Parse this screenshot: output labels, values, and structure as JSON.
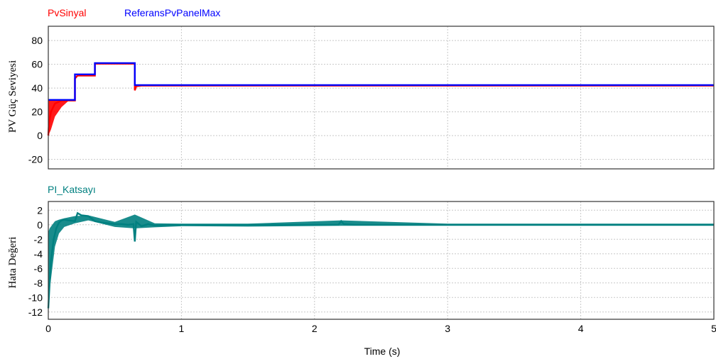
{
  "chart_data": [
    {
      "type": "line",
      "ylabel": "PV Güç Seviyesi",
      "ylim": [
        -28,
        92
      ],
      "yticks": [
        80,
        60,
        40,
        20,
        0,
        -20
      ],
      "xlim": [
        0,
        5
      ],
      "grid": true,
      "legend_placement": "top-left",
      "series": [
        {
          "name": "PvSinyal",
          "color": "#ff0000",
          "x": [
            0,
            0.005,
            0.02,
            0.05,
            0.1,
            0.2,
            0.2,
            0.22,
            0.35,
            0.35,
            0.65,
            0.65,
            0.66,
            0.7,
            5
          ],
          "y": [
            0,
            10,
            20,
            27,
            29.5,
            29.5,
            48,
            50.5,
            50.5,
            60.5,
            60.5,
            38,
            41.5,
            42,
            42
          ],
          "band": {
            "x": [
              0,
              0.02,
              0.05,
              0.1,
              0.15
            ],
            "ymin": [
              0,
              5,
              16,
              24,
              29
            ],
            "ymax": [
              30,
              30,
              30,
              30,
              30
            ]
          }
        },
        {
          "name": "ReferansPvPanelMax",
          "color": "#0000ff",
          "x": [
            0,
            0.2,
            0.2,
            0.35,
            0.35,
            0.65,
            0.65,
            5
          ],
          "y": [
            30,
            30,
            51.5,
            51.5,
            61,
            61,
            42.5,
            42.5
          ]
        }
      ]
    },
    {
      "type": "line",
      "ylabel": "Hata Değeri",
      "ylim": [
        -13,
        3.2
      ],
      "yticks": [
        2,
        0,
        -2,
        -4,
        -6,
        -8,
        -10,
        -12
      ],
      "xlim": [
        0,
        5
      ],
      "xticks": [
        0,
        1,
        2,
        3,
        4,
        5
      ],
      "xlabel": "Time (s)",
      "grid": true,
      "legend_placement": "top-left",
      "series": [
        {
          "name": "PI_Katsayı",
          "color": "#008080",
          "x": [
            0,
            0.01,
            0.02,
            0.04,
            0.06,
            0.08,
            0.1,
            0.12,
            0.15,
            0.2,
            0.22,
            0.25,
            0.3,
            0.35,
            0.4,
            0.45,
            0.5,
            0.55,
            0.6,
            0.64,
            0.65,
            0.66,
            0.7,
            0.75,
            0.8,
            1.0,
            1.5,
            2.18,
            2.2,
            2.22,
            2.3,
            3,
            4,
            5
          ],
          "y": [
            -11.5,
            -8,
            -5,
            -2,
            -0.5,
            0.3,
            0.6,
            0.7,
            0.6,
            0.5,
            1.6,
            1.3,
            1.2,
            0.5,
            0.3,
            0.2,
            0.1,
            0.1,
            0.0,
            0.1,
            -2.3,
            0.4,
            -0.2,
            0.1,
            -0.1,
            0.0,
            0.0,
            0.0,
            0.5,
            0.1,
            0.0,
            0.0,
            0.0,
            0.0
          ],
          "band": {
            "x": [
              0,
              0.01,
              0.03,
              0.05,
              0.08,
              0.12,
              0.2,
              0.3,
              0.5,
              0.65,
              0.8,
              1.0,
              1.5,
              2.2,
              3,
              4,
              5
            ],
            "ymin": [
              -11.8,
              -9,
              -6,
              -3,
              -1.2,
              -0.3,
              0.2,
              0.6,
              -0.3,
              -0.5,
              -0.35,
              -0.2,
              -0.25,
              -0.15,
              -0.15,
              -0.15,
              -0.15
            ],
            "ymax": [
              -1,
              -0.5,
              0,
              0.5,
              0.7,
              0.9,
              1.2,
              1.3,
              0.4,
              1.4,
              0.2,
              0.15,
              0.15,
              0.6,
              0.15,
              0.15,
              0.15
            ]
          }
        }
      ]
    }
  ]
}
